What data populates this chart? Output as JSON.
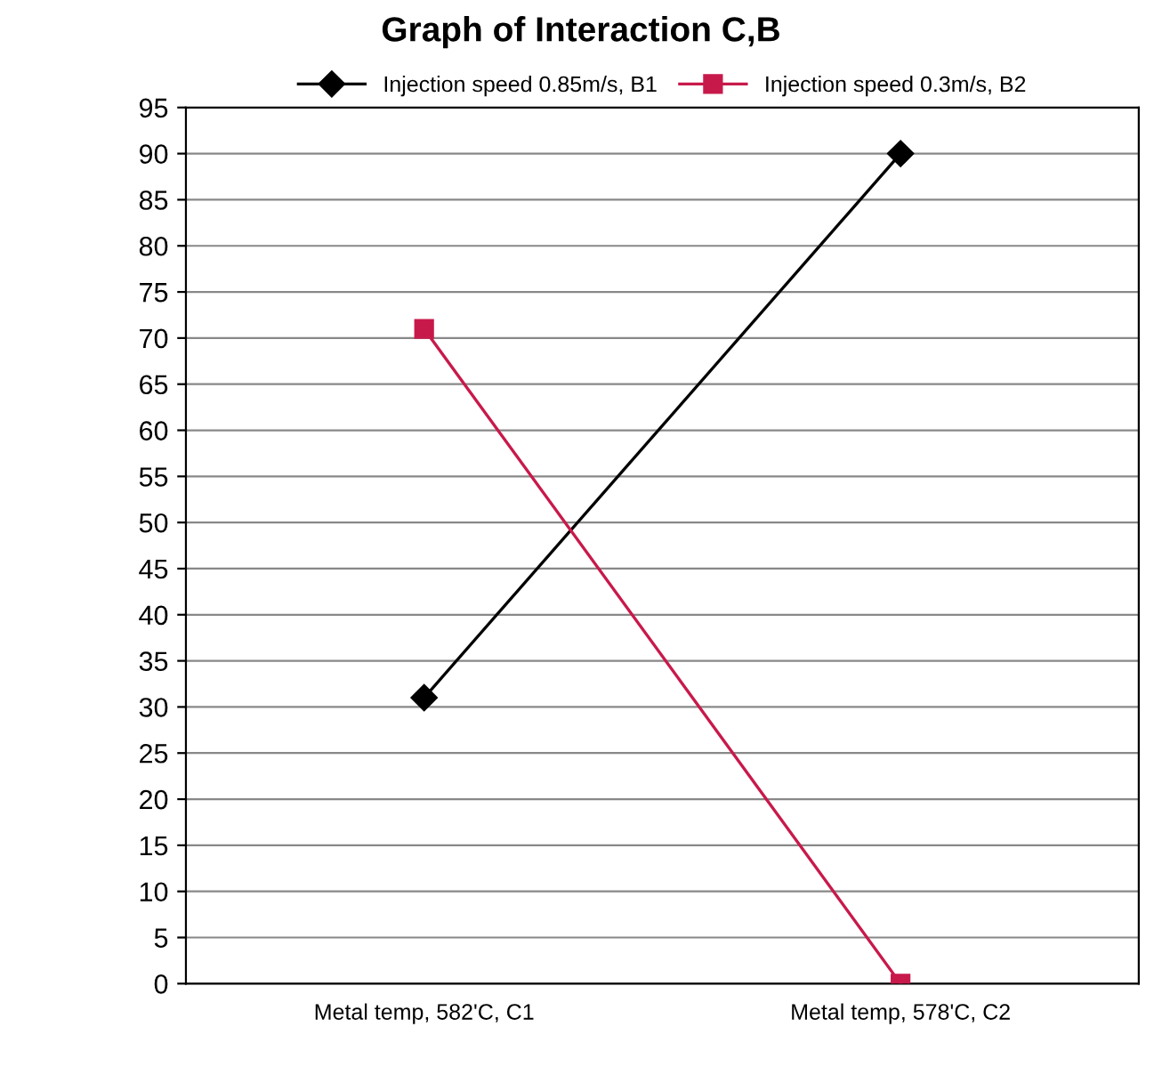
{
  "chart_data": {
    "type": "line",
    "title": "Graph of Interaction C,B",
    "categories": [
      "Metal temp, 582'C, C1",
      "Metal temp, 578'C, C2"
    ],
    "series": [
      {
        "name": "Injection speed 0.85m/s, B1",
        "color": "#000000",
        "values": [
          31,
          90
        ],
        "marker": "diamond"
      },
      {
        "name": "Injection speed 0.3m/s, B2",
        "color": "#c8194b",
        "values": [
          71,
          0
        ],
        "marker": "square"
      }
    ],
    "ylim": [
      0,
      95
    ],
    "yticks": [
      0,
      5,
      10,
      15,
      20,
      25,
      30,
      35,
      40,
      45,
      50,
      55,
      60,
      65,
      70,
      75,
      80,
      85,
      90,
      95
    ],
    "grid": "y",
    "legend": "top"
  }
}
